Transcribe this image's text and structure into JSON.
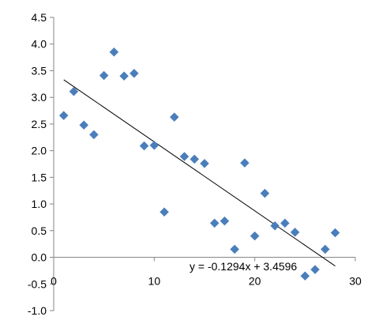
{
  "chart_data": {
    "type": "scatter",
    "title": "",
    "xlabel": "",
    "ylabel": "",
    "xlim": [
      0,
      30
    ],
    "ylim": [
      -1.0,
      4.5
    ],
    "x_ticks": [
      "0",
      "10",
      "20",
      "30"
    ],
    "y_ticks": [
      "4.5",
      "4.0",
      "3.5",
      "3.0",
      "2.5",
      "2.0",
      "1.5",
      "1.0",
      "0.5",
      "0.0",
      "-0.5",
      "-1.0"
    ],
    "grid": false,
    "legend": "none",
    "series": [
      {
        "color": "#4a7ebb",
        "marker": "diamond",
        "points": [
          {
            "x": 1,
            "y": 2.66
          },
          {
            "x": 2,
            "y": 3.11
          },
          {
            "x": 3,
            "y": 2.48
          },
          {
            "x": 4,
            "y": 2.3
          },
          {
            "x": 5,
            "y": 3.41
          },
          {
            "x": 6,
            "y": 3.85
          },
          {
            "x": 7,
            "y": 3.4
          },
          {
            "x": 8,
            "y": 3.45
          },
          {
            "x": 9,
            "y": 2.09
          },
          {
            "x": 10,
            "y": 2.1
          },
          {
            "x": 11,
            "y": 0.85
          },
          {
            "x": 12,
            "y": 2.63
          },
          {
            "x": 13,
            "y": 1.89
          },
          {
            "x": 14,
            "y": 1.84
          },
          {
            "x": 15,
            "y": 1.76
          },
          {
            "x": 16,
            "y": 0.64
          },
          {
            "x": 17,
            "y": 0.68
          },
          {
            "x": 18,
            "y": 0.15
          },
          {
            "x": 19,
            "y": 1.77
          },
          {
            "x": 20,
            "y": 0.4
          },
          {
            "x": 21,
            "y": 1.2
          },
          {
            "x": 22,
            "y": 0.59
          },
          {
            "x": 23,
            "y": 0.64
          },
          {
            "x": 24,
            "y": 0.47
          },
          {
            "x": 25,
            "y": -0.35
          },
          {
            "x": 26,
            "y": -0.23
          },
          {
            "x": 27,
            "y": 0.15
          },
          {
            "x": 28,
            "y": 0.46
          }
        ]
      }
    ],
    "trendline": {
      "slope": -0.1294,
      "intercept": 3.4596,
      "x_range": [
        1,
        28
      ],
      "color": "#000000",
      "equation": "y = -0.1294x + 3.4596"
    }
  }
}
